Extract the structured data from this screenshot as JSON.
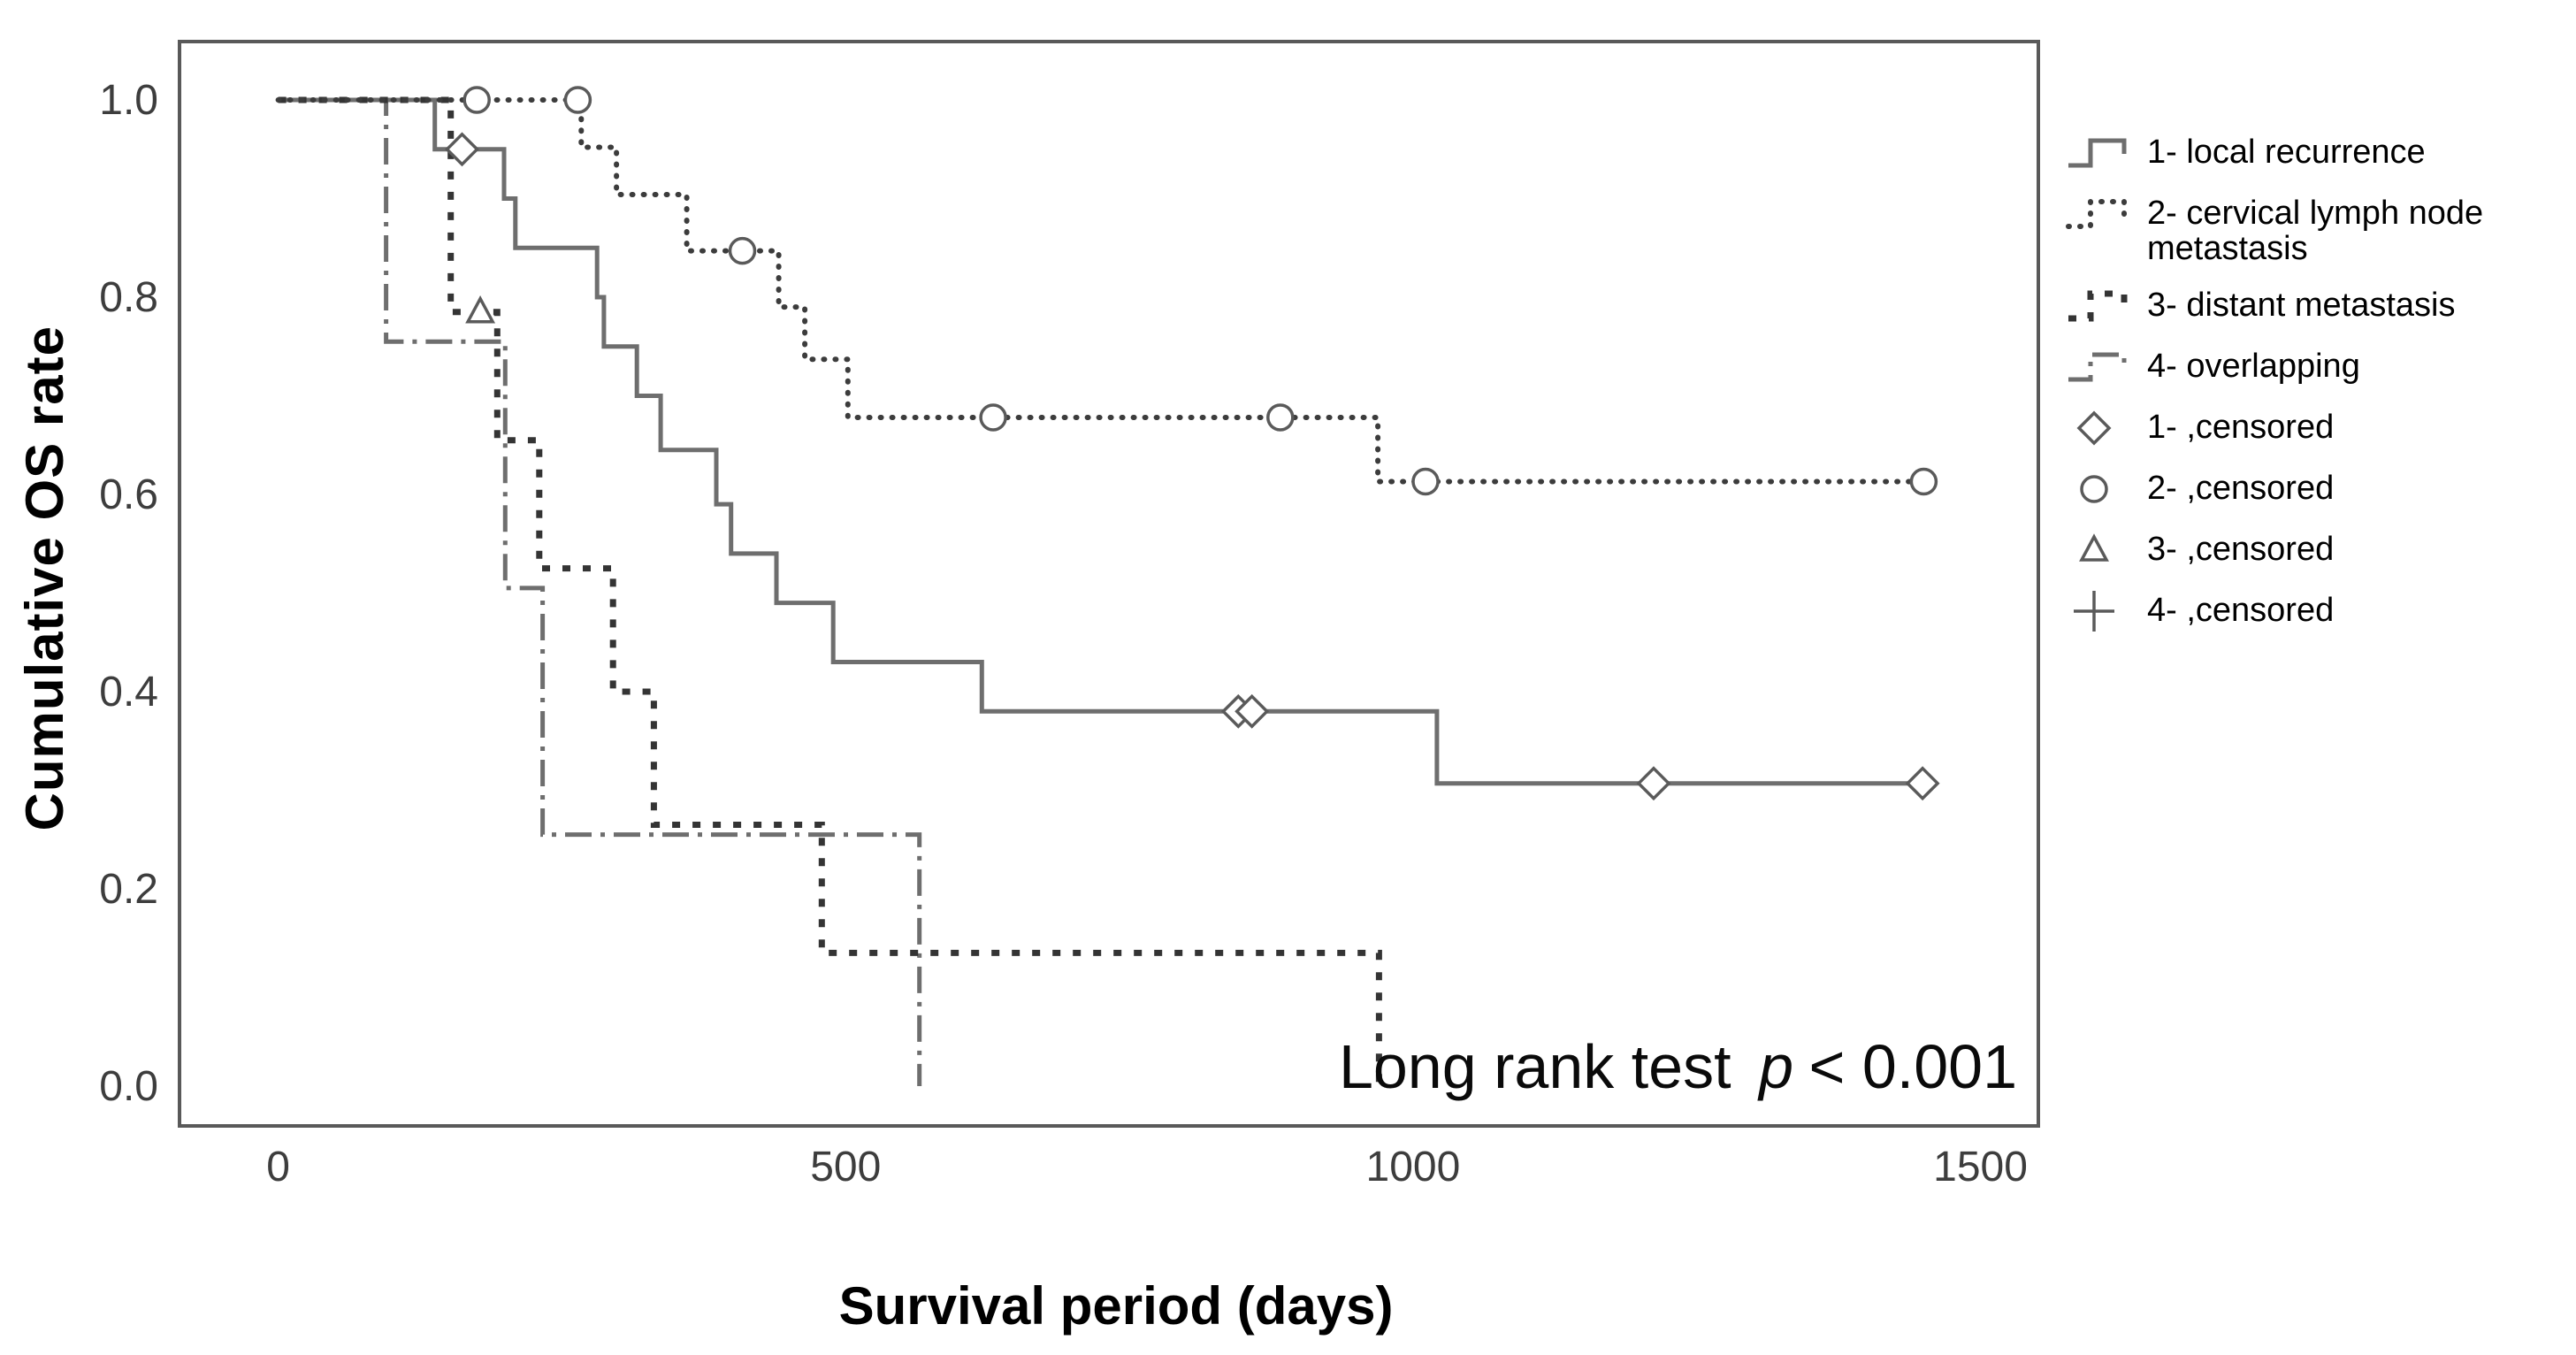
{
  "figure": {
    "background": "#ffffff",
    "ylabel": "Cumulative OS rate",
    "xlabel": "Survival period (days)",
    "annotation": {
      "prefix": "Long rank test",
      "p": "p",
      "suffix": "< 0.001"
    }
  },
  "chart_data": {
    "type": "line",
    "subtype": "kaplan-meier-step",
    "title": "",
    "xlabel": "Survival period (days)",
    "ylabel": "Cumulative OS rate",
    "x_ticks": [
      0,
      500,
      1000,
      1500
    ],
    "y_ticks": [
      0.0,
      0.2,
      0.4,
      0.6,
      0.8,
      1.0
    ],
    "xlim": [
      -87,
      1551
    ],
    "ylim": [
      -0.0404,
      1.0592
    ],
    "grid": false,
    "legend_position": "right-outside",
    "colors": {
      "plot_border": "#595959",
      "tick_label": "#3d3d3d",
      "marker_stroke": "#5a5a5a",
      "text": "#000000"
    },
    "series": [
      {
        "id": "1",
        "label": "1- local recurrence",
        "censor_label": "1- ,censored",
        "style": "solid",
        "color": "#6e6e6e",
        "marker": "diamond",
        "start_value": 1.0,
        "drops": [
          [
            138,
            0.95
          ],
          [
            199,
            0.9
          ],
          [
            209,
            0.85
          ],
          [
            281,
            0.8
          ],
          [
            287,
            0.75
          ],
          [
            316,
            0.7
          ],
          [
            337,
            0.645
          ],
          [
            386,
            0.59
          ],
          [
            399,
            0.54
          ],
          [
            439,
            0.49
          ],
          [
            489,
            0.43
          ],
          [
            620,
            0.38
          ],
          [
            1021,
            0.307
          ]
        ],
        "end_day": 1449,
        "censored": [
          [
            162,
            0.95
          ],
          [
            846,
            0.38
          ],
          [
            858,
            0.38
          ],
          [
            1212,
            0.307
          ],
          [
            1449,
            0.307
          ]
        ]
      },
      {
        "id": "2",
        "label": "2- cervical lymph node metastasis",
        "censor_label": "2- ,censored",
        "style": "dot",
        "color": "#3c3c3c",
        "marker": "circle",
        "start_value": 1.0,
        "drops": [
          [
            267,
            0.952
          ],
          [
            298,
            0.904
          ],
          [
            360,
            0.847
          ],
          [
            441,
            0.79
          ],
          [
            464,
            0.737
          ],
          [
            502,
            0.678
          ],
          [
            969,
            0.613
          ]
        ],
        "end_day": 1450,
        "censored": [
          [
            175,
            1.0
          ],
          [
            264,
            1.0
          ],
          [
            409,
            0.847
          ],
          [
            630,
            0.678
          ],
          [
            883,
            0.678
          ],
          [
            1011,
            0.613
          ],
          [
            1450,
            0.613
          ]
        ]
      },
      {
        "id": "3",
        "label": "3- distant metastasis",
        "censor_label": "3- ,censored",
        "style": "square-dot",
        "color": "#343434",
        "marker": "triangle",
        "start_value": 1.0,
        "drops": [
          [
            152,
            0.785
          ],
          [
            193,
            0.655
          ],
          [
            230,
            0.525
          ],
          [
            295,
            0.4
          ],
          [
            331,
            0.265
          ],
          [
            479,
            0.135
          ],
          [
            970,
            0.0
          ]
        ],
        "end_day": 970,
        "censored": [
          [
            178,
            0.785
          ]
        ]
      },
      {
        "id": "4",
        "label": "4- overlapping",
        "censor_label": "4- ,censored",
        "style": "dash-dot",
        "color": "#6e6e6e",
        "marker": "plus",
        "start_value": 1.0,
        "drops": [
          [
            95,
            0.755
          ],
          [
            200,
            0.505
          ],
          [
            233,
            0.255
          ],
          [
            565,
            0.0
          ]
        ],
        "end_day": 565,
        "censored": []
      }
    ]
  }
}
